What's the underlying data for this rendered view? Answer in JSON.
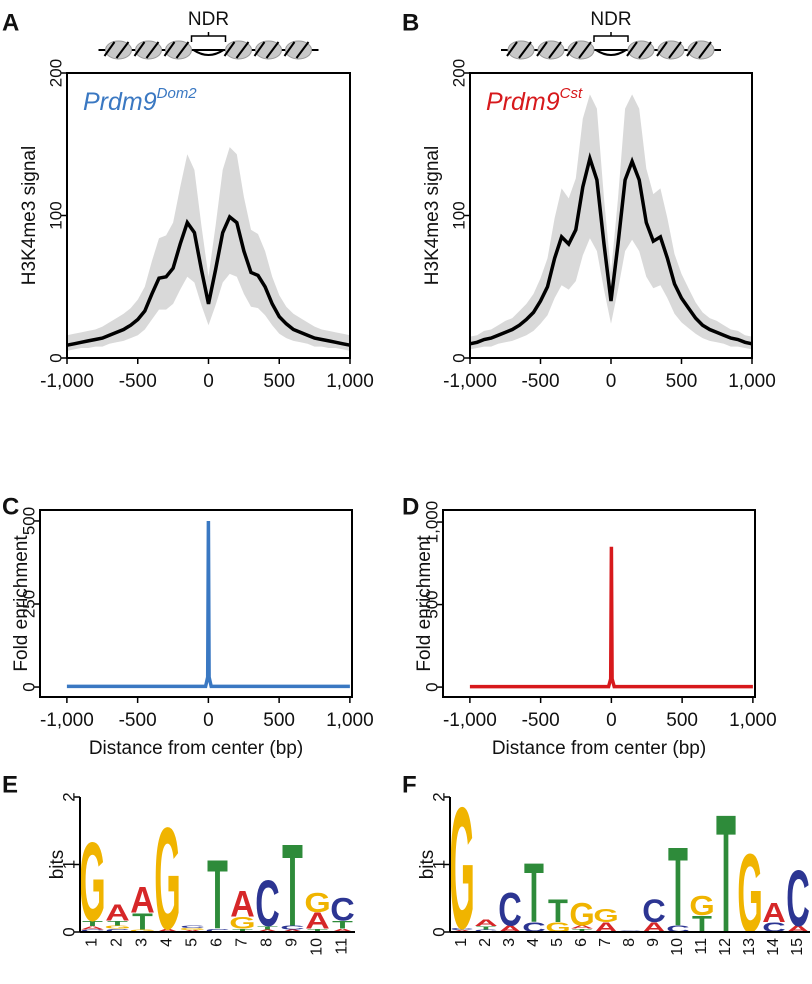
{
  "chart_data": [
    {
      "type": "band_line",
      "panel": "A",
      "annotation": "NDR",
      "label": "Prdm9",
      "label_sup": "Dom2",
      "label_color": "#3a78c2",
      "ylabel": "H3K4me3 signal",
      "x": [
        -1000,
        -950,
        -900,
        -850,
        -800,
        -750,
        -700,
        -650,
        -600,
        -550,
        -500,
        -450,
        -400,
        -350,
        -300,
        -250,
        -200,
        -150,
        -100,
        -50,
        0,
        50,
        100,
        150,
        200,
        250,
        300,
        350,
        400,
        450,
        500,
        550,
        600,
        650,
        700,
        750,
        800,
        850,
        900,
        950,
        1000
      ],
      "series": [
        {
          "color": "#000000",
          "band_color": "#d9d9d9",
          "values": [
            9,
            10,
            11,
            12,
            13,
            14,
            16,
            18,
            20,
            23,
            27,
            33,
            45,
            56,
            57,
            63,
            80,
            95,
            88,
            62,
            38,
            62,
            88,
            99,
            95,
            75,
            60,
            58,
            50,
            38,
            29,
            24,
            20,
            18,
            16,
            14,
            13,
            12,
            11,
            10,
            9
          ],
          "lower": [
            5,
            6,
            7,
            7,
            8,
            8,
            10,
            11,
            12,
            14,
            16,
            20,
            27,
            34,
            34,
            38,
            48,
            57,
            53,
            37,
            23,
            37,
            53,
            59,
            57,
            45,
            36,
            35,
            30,
            23,
            17,
            14,
            12,
            11,
            10,
            8,
            8,
            7,
            7,
            6,
            5
          ],
          "upper": [
            16,
            17,
            18,
            19,
            20,
            22,
            25,
            28,
            31,
            35,
            41,
            50,
            68,
            84,
            86,
            95,
            120,
            143,
            132,
            93,
            57,
            93,
            132,
            148,
            143,
            113,
            90,
            87,
            75,
            57,
            44,
            36,
            31,
            28,
            25,
            22,
            20,
            19,
            18,
            17,
            16
          ]
        }
      ],
      "xlim": [
        -1000,
        1000
      ],
      "xticks": [
        {
          "value": -1000,
          "label": "-1,000"
        },
        -500,
        0,
        500,
        {
          "value": 1000,
          "label": "1,000"
        }
      ],
      "ylim": [
        0,
        200
      ],
      "yticks": [
        0,
        100,
        200
      ]
    },
    {
      "type": "band_line",
      "panel": "B",
      "annotation": "NDR",
      "label": "Prdm9",
      "label_sup": "Cst",
      "label_color": "#d7191c",
      "ylabel": "H3K4me3 signal",
      "x": [
        -1000,
        -950,
        -900,
        -850,
        -800,
        -750,
        -700,
        -650,
        -600,
        -550,
        -500,
        -450,
        -400,
        -350,
        -300,
        -250,
        -200,
        -150,
        -100,
        -50,
        0,
        50,
        100,
        150,
        200,
        250,
        300,
        350,
        400,
        450,
        500,
        550,
        600,
        650,
        700,
        750,
        800,
        850,
        900,
        950,
        1000
      ],
      "series": [
        {
          "color": "#000000",
          "band_color": "#d9d9d9",
          "values": [
            10,
            11,
            13,
            14,
            16,
            18,
            20,
            23,
            27,
            32,
            40,
            50,
            70,
            85,
            80,
            90,
            120,
            140,
            125,
            80,
            40,
            80,
            125,
            138,
            125,
            95,
            82,
            85,
            70,
            52,
            42,
            35,
            28,
            23,
            20,
            18,
            16,
            14,
            13,
            11,
            10
          ],
          "lower": [
            6,
            7,
            8,
            8,
            10,
            11,
            12,
            14,
            16,
            19,
            24,
            30,
            42,
            51,
            48,
            54,
            72,
            84,
            75,
            48,
            24,
            48,
            75,
            83,
            75,
            57,
            49,
            51,
            42,
            31,
            25,
            21,
            17,
            14,
            12,
            11,
            10,
            8,
            8,
            7,
            6
          ],
          "upper": [
            15,
            16,
            19,
            20,
            23,
            26,
            28,
            33,
            38,
            45,
            56,
            70,
            98,
            119,
            112,
            126,
            168,
            185,
            175,
            112,
            60,
            112,
            175,
            185,
            175,
            133,
            115,
            119,
            98,
            73,
            59,
            49,
            39,
            32,
            28,
            26,
            23,
            20,
            19,
            16,
            15
          ]
        }
      ],
      "xlim": [
        -1000,
        1000
      ],
      "xticks": [
        {
          "value": -1000,
          "label": "-1,000"
        },
        -500,
        0,
        500,
        {
          "value": 1000,
          "label": "1,000"
        }
      ],
      "ylim": [
        0,
        200
      ],
      "yticks": [
        0,
        100,
        200
      ]
    },
    {
      "type": "line",
      "panel": "C",
      "ylabel": "Fold enrichment",
      "xlabel": "Distance from center  (bp)",
      "x": [
        -1000,
        -750,
        -500,
        -250,
        -20,
        -5,
        0,
        5,
        20,
        250,
        500,
        750,
        1000
      ],
      "series": [
        {
          "color": "#3a78c2",
          "values": [
            2,
            2,
            2,
            2,
            2,
            30,
            500,
            30,
            2,
            2,
            2,
            2,
            2
          ]
        }
      ],
      "xlim": [
        -1190,
        1015
      ],
      "xticks": [
        {
          "value": -1000,
          "label": "-1,000"
        },
        -500,
        0,
        500,
        {
          "value": 1000,
          "label": "1,000"
        }
      ],
      "ylim": [
        -30,
        533
      ],
      "yticks": [
        0,
        250,
        500
      ]
    },
    {
      "type": "line",
      "panel": "D",
      "ylabel": "Fold enrichment",
      "xlabel": "Distance from center  (bp)",
      "x": [
        -1000,
        -750,
        -500,
        -250,
        -20,
        -5,
        0,
        5,
        20,
        250,
        500,
        750,
        1000
      ],
      "series": [
        {
          "color": "#d7191c",
          "values": [
            3,
            3,
            3,
            3,
            3,
            50,
            850,
            50,
            3,
            3,
            3,
            3,
            3
          ]
        }
      ],
      "xlim": [
        -1190,
        1015
      ],
      "xticks": [
        {
          "value": -1000,
          "label": "-1,000"
        },
        -500,
        0,
        500,
        {
          "value": 1000,
          "label": "1,000"
        }
      ],
      "ylim": [
        -60,
        1073
      ],
      "yticks": [
        0,
        500,
        {
          "value": 1000,
          "label": "1,000"
        }
      ]
    },
    {
      "type": "sequence_logo",
      "panel": "E",
      "ylabel": "bits",
      "letter_colors": {
        "A": "#d62728",
        "C": "#2c3592",
        "G": "#f0b400",
        "T": "#2e8b3a"
      },
      "categories": [
        "1",
        "2",
        "3",
        "4",
        "5",
        "6",
        "7",
        "8",
        "9",
        "10",
        "11"
      ],
      "stacks": [
        [
          {
            "letter": "C",
            "bits": 0.04
          },
          {
            "letter": "A",
            "bits": 0.05
          },
          {
            "letter": "T",
            "bits": 0.08
          },
          {
            "letter": "G",
            "bits": 1.2
          }
        ],
        [
          {
            "letter": "C",
            "bits": 0.05
          },
          {
            "letter": "G",
            "bits": 0.05
          },
          {
            "letter": "T",
            "bits": 0.07
          },
          {
            "letter": "A",
            "bits": 0.25
          }
        ],
        [
          {
            "letter": "G",
            "bits": 0.04
          },
          {
            "letter": "T",
            "bits": 0.25
          },
          {
            "letter": "A",
            "bits": 0.4
          }
        ],
        [
          {
            "letter": "A",
            "bits": 0.05
          },
          {
            "letter": "G",
            "bits": 1.55
          }
        ],
        [
          {
            "letter": "A",
            "bits": 0.03
          },
          {
            "letter": "G",
            "bits": 0.03
          },
          {
            "letter": "C",
            "bits": 0.04
          }
        ],
        [
          {
            "letter": "C",
            "bits": 0.05
          },
          {
            "letter": "T",
            "bits": 1.05
          }
        ],
        [
          {
            "letter": "T",
            "bits": 0.05
          },
          {
            "letter": "G",
            "bits": 0.18
          },
          {
            "letter": "A",
            "bits": 0.4
          }
        ],
        [
          {
            "letter": "A",
            "bits": 0.04
          },
          {
            "letter": "T",
            "bits": 0.05
          },
          {
            "letter": "C",
            "bits": 0.7
          }
        ],
        [
          {
            "letter": "A",
            "bits": 0.04
          },
          {
            "letter": "C",
            "bits": 0.06
          },
          {
            "letter": "T",
            "bits": 1.25
          }
        ],
        [
          {
            "letter": "T",
            "bits": 0.05
          },
          {
            "letter": "A",
            "bits": 0.25
          },
          {
            "letter": "G",
            "bits": 0.3
          }
        ],
        [
          {
            "letter": "A",
            "bits": 0.05
          },
          {
            "letter": "T",
            "bits": 0.12
          },
          {
            "letter": "C",
            "bits": 0.35
          }
        ]
      ],
      "ylim": [
        0,
        2
      ],
      "yticks": [
        0,
        1,
        2
      ]
    },
    {
      "type": "sequence_logo",
      "panel": "F",
      "ylabel": "bits",
      "letter_colors": {
        "A": "#d62728",
        "C": "#2c3592",
        "G": "#f0b400",
        "T": "#2e8b3a"
      },
      "categories": [
        "1",
        "2",
        "3",
        "4",
        "5",
        "6",
        "7",
        "8",
        "9",
        "10",
        "11",
        "12",
        "13",
        "14",
        "15"
      ],
      "stacks": [
        [
          {
            "letter": "A",
            "bits": 0.03
          },
          {
            "letter": "C",
            "bits": 0.03
          },
          {
            "letter": "G",
            "bits": 1.85
          }
        ],
        [
          {
            "letter": "C",
            "bits": 0.04
          },
          {
            "letter": "T",
            "bits": 0.05
          },
          {
            "letter": "A",
            "bits": 0.1
          }
        ],
        [
          {
            "letter": "A",
            "bits": 0.1
          },
          {
            "letter": "C",
            "bits": 0.5
          }
        ],
        [
          {
            "letter": "C",
            "bits": 0.15
          },
          {
            "letter": "T",
            "bits": 0.9
          }
        ],
        [
          {
            "letter": "G",
            "bits": 0.15
          },
          {
            "letter": "T",
            "bits": 0.35
          }
        ],
        [
          {
            "letter": "T",
            "bits": 0.05
          },
          {
            "letter": "A",
            "bits": 0.05
          },
          {
            "letter": "G",
            "bits": 0.35
          }
        ],
        [
          {
            "letter": "A",
            "bits": 0.15
          },
          {
            "letter": "G",
            "bits": 0.2
          }
        ],
        [
          {
            "letter": "C",
            "bits": 0.02
          }
        ],
        [
          {
            "letter": "A",
            "bits": 0.15
          },
          {
            "letter": "C",
            "bits": 0.35
          }
        ],
        [
          {
            "letter": "C",
            "bits": 0.1
          },
          {
            "letter": "T",
            "bits": 1.2
          }
        ],
        [
          {
            "letter": "T",
            "bits": 0.25
          },
          {
            "letter": "G",
            "bits": 0.3
          }
        ],
        [
          {
            "letter": "T",
            "bits": 1.8
          }
        ],
        [
          {
            "letter": "G",
            "bits": 1.2
          }
        ],
        [
          {
            "letter": "C",
            "bits": 0.15
          },
          {
            "letter": "A",
            "bits": 0.3
          }
        ],
        [
          {
            "letter": "A",
            "bits": 0.1
          },
          {
            "letter": "C",
            "bits": 0.85
          }
        ]
      ],
      "ylim": [
        0,
        2
      ],
      "yticks": [
        0,
        1,
        2
      ]
    }
  ]
}
